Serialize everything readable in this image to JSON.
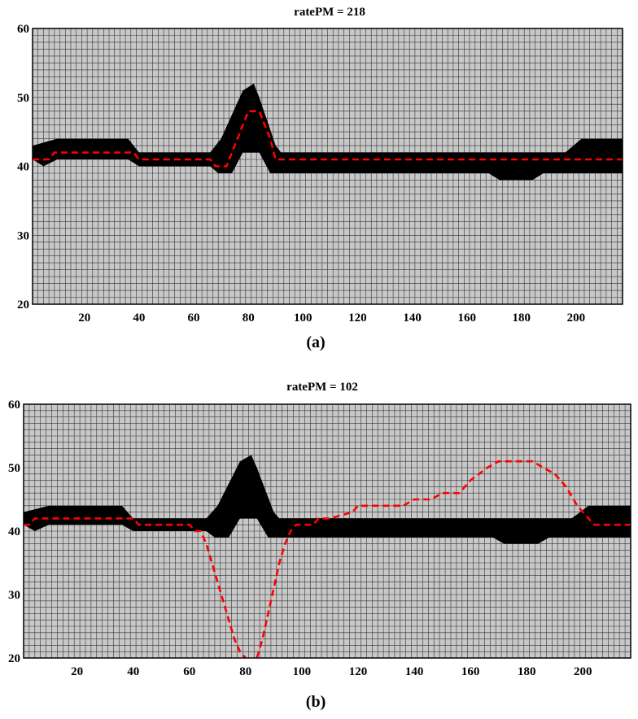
{
  "chart_data": [
    {
      "id": "a",
      "type": "heatmap",
      "title": "ratePM =  218",
      "caption_letter": "a",
      "xlim": [
        1,
        217
      ],
      "ylim": [
        20,
        60
      ],
      "x_ticks": [
        20,
        40,
        60,
        80,
        100,
        120,
        140,
        160,
        180,
        200
      ],
      "y_ticks": [
        20,
        30,
        40,
        50,
        60
      ],
      "grid": true,
      "band_top": [
        [
          1,
          43
        ],
        [
          10,
          44
        ],
        [
          36,
          44
        ],
        [
          40,
          42
        ],
        [
          66,
          42
        ],
        [
          70,
          44
        ],
        [
          78,
          51
        ],
        [
          82,
          52
        ],
        [
          84,
          50
        ],
        [
          90,
          43
        ],
        [
          92,
          42
        ],
        [
          196,
          42
        ],
        [
          202,
          44
        ],
        [
          217,
          44
        ]
      ],
      "band_bottom": [
        [
          1,
          41
        ],
        [
          5,
          40
        ],
        [
          10,
          41
        ],
        [
          36,
          41
        ],
        [
          40,
          40
        ],
        [
          66,
          40
        ],
        [
          69,
          39
        ],
        [
          74,
          39
        ],
        [
          78,
          42
        ],
        [
          84,
          42
        ],
        [
          88,
          39
        ],
        [
          168,
          39
        ],
        [
          172,
          38
        ],
        [
          184,
          38
        ],
        [
          188,
          39
        ],
        [
          217,
          39
        ]
      ],
      "band_color": "#000000",
      "series": [
        {
          "style": "dashed",
          "color": "#ff0000",
          "x": [
            1,
            5,
            7,
            9,
            35,
            38,
            40,
            66,
            68,
            72,
            74,
            76,
            78,
            80,
            82,
            84,
            86,
            88,
            90,
            217
          ],
          "y": [
            41,
            41,
            41,
            42,
            42,
            42,
            41,
            41,
            40,
            40,
            42,
            44,
            46,
            48,
            48,
            48,
            46,
            44,
            41,
            41
          ]
        }
      ]
    },
    {
      "id": "b",
      "type": "heatmap",
      "title": "ratePM = 102",
      "caption_letter": "b",
      "xlim": [
        1,
        217
      ],
      "ylim": [
        20,
        60
      ],
      "x_ticks": [
        20,
        40,
        60,
        80,
        100,
        120,
        140,
        160,
        180,
        200
      ],
      "y_ticks": [
        20,
        30,
        40,
        50,
        60
      ],
      "grid": true,
      "band_top": [
        [
          1,
          43
        ],
        [
          10,
          44
        ],
        [
          36,
          44
        ],
        [
          40,
          42
        ],
        [
          66,
          42
        ],
        [
          70,
          44
        ],
        [
          78,
          51
        ],
        [
          82,
          52
        ],
        [
          84,
          50
        ],
        [
          90,
          43
        ],
        [
          92,
          42
        ],
        [
          196,
          42
        ],
        [
          202,
          44
        ],
        [
          217,
          44
        ]
      ],
      "band_bottom": [
        [
          1,
          41
        ],
        [
          5,
          40
        ],
        [
          10,
          41
        ],
        [
          36,
          41
        ],
        [
          40,
          40
        ],
        [
          66,
          40
        ],
        [
          69,
          39
        ],
        [
          74,
          39
        ],
        [
          78,
          42
        ],
        [
          84,
          42
        ],
        [
          88,
          39
        ],
        [
          168,
          39
        ],
        [
          172,
          38
        ],
        [
          184,
          38
        ],
        [
          188,
          39
        ],
        [
          217,
          39
        ]
      ],
      "band_color": "#000000",
      "series": [
        {
          "style": "dashed",
          "color": "#ff0000",
          "x": [
            1,
            3,
            5,
            38,
            40,
            42,
            60,
            62,
            64,
            66,
            68,
            70,
            72,
            74,
            76,
            78,
            80,
            82,
            84,
            86,
            88,
            90,
            92,
            94,
            96,
            98,
            100,
            104,
            106,
            110,
            118,
            120,
            130,
            136,
            140,
            146,
            150,
            156,
            160,
            166,
            170,
            180,
            182,
            186,
            190,
            194,
            198,
            202,
            204,
            217
          ],
          "y": [
            41,
            41,
            42,
            42,
            42,
            41,
            41,
            40,
            40,
            38,
            35,
            32,
            29,
            26,
            23,
            21,
            20,
            19,
            20,
            23,
            27,
            31,
            35,
            38,
            40,
            41,
            41,
            41,
            42,
            42,
            43,
            44,
            44,
            44,
            45,
            45,
            46,
            46,
            48,
            50,
            51,
            51,
            51,
            50,
            49,
            47,
            44,
            42,
            41,
            41
          ]
        }
      ]
    }
  ]
}
